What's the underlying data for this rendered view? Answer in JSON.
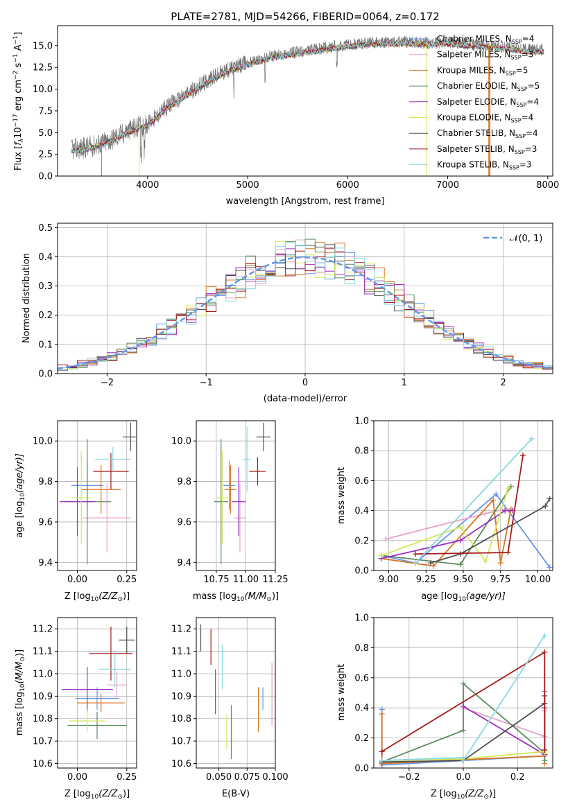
{
  "colors": [
    "#6495ed",
    "#e8a0c8",
    "#d9751f",
    "#5b8a5c",
    "#9b30c0",
    "#d4e85a",
    "#505050",
    "#a61919",
    "#88d8e0"
  ],
  "chart_data": [
    {
      "type": "line",
      "title": "PLATE=2781, MJD=54266, FIBERID=0064, z=0.172",
      "xlabel": "wavelength [Angstrom, rest frame]",
      "ylabel": "Flux [$f_\\lambda 10^{-17}$ erg cm$^{-2}$ s$^{-1}$ A$^{-1}$]",
      "ylabel_main": "Flux [",
      "ylabel_f": "f",
      "ylabel_fsub": "λ",
      "ylabel_mid1": "10",
      "ylabel_sup1": "−17",
      "ylabel_mid2": " erg cm",
      "ylabel_sup2": "−2",
      "ylabel_mid3": " s",
      "ylabel_sup3": "−1",
      "ylabel_mid4": " A",
      "ylabel_sup4": "−1",
      "ylabel_end": "]",
      "xlim": [
        3100,
        8050
      ],
      "ylim": [
        0,
        17.3
      ],
      "xticks": [
        "4000",
        "5000",
        "6000",
        "7000",
        "8000"
      ],
      "yticks": [
        "0.0",
        "2.5",
        "5.0",
        "7.5",
        "10.0",
        "12.5",
        "15.0"
      ],
      "legend": {
        "placement": "upper-right",
        "entries": [
          {
            "imf": "Chabrier MILES, N",
            "sub": "SSP",
            "val": "=4"
          },
          {
            "imf": "Salpeter MILES, N",
            "sub": "SSP",
            "val": "=3"
          },
          {
            "imf": "Kroupa MILES, N",
            "sub": "SSP",
            "val": "=5"
          },
          {
            "imf": "Chabrier ELODIE, N",
            "sub": "SSP",
            "val": "=5"
          },
          {
            "imf": "Salpeter ELODIE, N",
            "sub": "SSP",
            "val": "=4"
          },
          {
            "imf": "Kroupa ELODIE, N",
            "sub": "SSP",
            "val": "=4"
          },
          {
            "imf": "Chabrier STELIB, N",
            "sub": "SSP",
            "val": "=4"
          },
          {
            "imf": "Salpeter STELIB, N",
            "sub": "SSP",
            "val": "=3"
          },
          {
            "imf": "Kroupa STELIB, N",
            "sub": "SSP",
            "val": "=3"
          }
        ]
      },
      "series_continuum": {
        "x": [
          3200,
          3400,
          3600,
          3800,
          4000,
          4200,
          4400,
          4600,
          4800,
          5000,
          5200,
          5400,
          5600,
          5800,
          6000,
          6200,
          6400,
          6600,
          6800,
          7000,
          7200,
          7400,
          7600,
          7800
        ],
        "y": [
          3.0,
          3.3,
          4.0,
          5.2,
          6.0,
          8.0,
          9.5,
          11.0,
          12.2,
          13.0,
          13.7,
          14.1,
          14.4,
          14.8,
          15.1,
          15.3,
          15.4,
          15.4,
          15.3,
          15.4,
          15.2,
          15.0,
          14.8,
          14.5
        ]
      }
    },
    {
      "type": "line",
      "xlabel": "(data-model)/error",
      "ylabel": "Normed distribution",
      "xlim": [
        -2.5,
        2.5
      ],
      "ylim": [
        0,
        0.515
      ],
      "xticks": [
        "−2",
        "−1",
        "0",
        "1",
        "2"
      ],
      "yticks": [
        "0.0",
        "0.1",
        "0.2",
        "0.3",
        "0.4",
        "0.5"
      ],
      "grid": true,
      "legend": {
        "placement": "upper-right",
        "entries": [
          "𝒩(0, 1)"
        ]
      },
      "histogram": {
        "bin_width": 0.1,
        "peak": 0.49,
        "n_series": 9
      },
      "gaussian": {
        "mean": 0,
        "sigma": 1
      }
    },
    {
      "type": "scatter",
      "xlabel_pre": "Z [log",
      "xlabel_sub": "10",
      "xlabel_mid": "(Z/Z",
      "xlabel_sun": "⊙",
      "xlabel_end": ")]",
      "ylabel_pre": "age  [log",
      "ylabel_sub": "10",
      "ylabel_mid": "(age/yr)]",
      "xlim": [
        -0.1,
        0.3
      ],
      "ylim": [
        9.36,
        10.1
      ],
      "xticks": [
        "0.00",
        "0.25"
      ],
      "yticks": [
        "9.4",
        "9.6",
        "9.8",
        "10.0"
      ],
      "grid": true,
      "points": [
        {
          "x": 0.05,
          "y": 9.78,
          "xerr": 0.08,
          "yerr": 0.12
        },
        {
          "x": 0.15,
          "y": 9.62,
          "xerr": 0.12,
          "yerr": 0.17
        },
        {
          "x": 0.12,
          "y": 9.76,
          "xerr": 0.1,
          "yerr": 0.12
        },
        {
          "x": 0.05,
          "y": 9.7,
          "xerr": 0.12,
          "yerr": 0.31
        },
        {
          "x": 0.0,
          "y": 9.7,
          "xerr": 0.09,
          "yerr": 0.17
        },
        {
          "x": 0.02,
          "y": 9.72,
          "xerr": 0.05,
          "yerr": 0.23
        },
        {
          "x": 0.27,
          "y": 10.02,
          "xerr": 0.04,
          "yerr": 0.07
        },
        {
          "x": 0.17,
          "y": 9.85,
          "xerr": 0.09,
          "yerr": 0.09
        },
        {
          "x": 0.18,
          "y": 9.91,
          "xerr": 0.09,
          "yerr": 0.06
        }
      ]
    },
    {
      "type": "scatter",
      "xlabel_pre": "mass [log",
      "xlabel_sub": "10",
      "xlabel_mid": "(M/M",
      "xlabel_sun": "⊙",
      "xlabel_end": ")]",
      "xlim": [
        10.58,
        11.25
      ],
      "ylim": [
        9.36,
        10.1
      ],
      "xticks": [
        "10.75",
        "11.00",
        "11.25"
      ],
      "yticks": [
        "9.4",
        "9.6",
        "9.8",
        "10.0"
      ],
      "grid": true,
      "points": [
        {
          "x": 10.86,
          "y": 9.78,
          "xerr": 0.05,
          "yerr": 0.12
        },
        {
          "x": 10.95,
          "y": 9.62,
          "xerr": 0.05,
          "yerr": 0.17
        },
        {
          "x": 10.87,
          "y": 9.76,
          "xerr": 0.05,
          "yerr": 0.12
        },
        {
          "x": 10.79,
          "y": 9.7,
          "xerr": 0.06,
          "yerr": 0.31
        },
        {
          "x": 10.94,
          "y": 9.7,
          "xerr": 0.06,
          "yerr": 0.17
        },
        {
          "x": 10.8,
          "y": 9.72,
          "xerr": 0.05,
          "yerr": 0.23
        },
        {
          "x": 11.15,
          "y": 10.02,
          "xerr": 0.06,
          "yerr": 0.07
        },
        {
          "x": 11.1,
          "y": 9.85,
          "xerr": 0.07,
          "yerr": 0.07
        },
        {
          "x": 11.01,
          "y": 9.91,
          "xerr": 0.03,
          "yerr": 0.16
        }
      ]
    },
    {
      "type": "line",
      "xlabel_pre": "age  [log",
      "xlabel_sub": "10",
      "xlabel_mid": "(age/yr)]",
      "ylabel": "mass weight",
      "xlim": [
        8.9,
        10.1
      ],
      "ylim": [
        0,
        1.0
      ],
      "xticks": [
        "9.00",
        "9.25",
        "9.50",
        "9.75",
        "10.00"
      ],
      "yticks": [
        "0.0",
        "0.2",
        "0.4",
        "0.6",
        "0.8",
        "1.0"
      ],
      "grid": true,
      "series": [
        {
          "x": [
            8.95,
            9.18,
            9.72,
            10.08
          ],
          "y": [
            0.1,
            0.05,
            0.51,
            0.02
          ]
        },
        {
          "x": [
            8.98,
            9.65,
            9.78
          ],
          "y": [
            0.21,
            0.38,
            0.41
          ]
        },
        {
          "x": [
            8.95,
            9.3,
            9.7,
            9.75,
            9.82
          ],
          "y": [
            0.08,
            0.03,
            0.47,
            0.05,
            0.41
          ]
        },
        {
          "x": [
            8.95,
            9.48,
            9.82
          ],
          "y": [
            0.1,
            0.04,
            0.56
          ]
        },
        {
          "x": [
            8.95,
            9.48,
            9.78,
            9.83
          ],
          "y": [
            0.08,
            0.2,
            0.4,
            0.4
          ]
        },
        {
          "x": [
            8.95,
            9.48,
            9.65,
            9.8
          ],
          "y": [
            0.1,
            0.29,
            0.06,
            0.55
          ]
        },
        {
          "x": [
            9.28,
            9.48,
            10.05,
            10.08
          ],
          "y": [
            0.05,
            0.11,
            0.43,
            0.48
          ]
        },
        {
          "x": [
            9.18,
            9.8,
            9.9
          ],
          "y": [
            0.11,
            0.12,
            0.77
          ]
        },
        {
          "x": [
            9.18,
            9.96
          ],
          "y": [
            0.05,
            0.88
          ]
        }
      ]
    },
    {
      "type": "scatter",
      "xlabel_pre": "Z [log",
      "xlabel_sub": "10",
      "xlabel_mid": "(Z/Z",
      "xlabel_sun": "⊙",
      "xlabel_end": ")]",
      "ylabel_pre": "mass [log",
      "ylabel_sub": "10",
      "ylabel_mid": "(M/M",
      "ylabel_sun": "⊙",
      "ylabel_end": ")]",
      "xlim": [
        -0.1,
        0.3
      ],
      "ylim": [
        10.58,
        11.25
      ],
      "xticks": [
        "0.00",
        "0.25"
      ],
      "yticks": [
        "10.6",
        "10.7",
        "10.8",
        "10.9",
        "11.0",
        "11.1",
        "11.2"
      ],
      "grid": true,
      "points": [
        {
          "x": 0.1,
          "y": 10.89,
          "xerr": 0.11,
          "yerr": 0.05
        },
        {
          "x": 0.2,
          "y": 10.95,
          "xerr": 0.05,
          "yerr": 0.06
        },
        {
          "x": 0.12,
          "y": 10.87,
          "xerr": 0.12,
          "yerr": 0.04
        },
        {
          "x": 0.1,
          "y": 10.77,
          "xerr": 0.15,
          "yerr": 0.06
        },
        {
          "x": 0.05,
          "y": 10.93,
          "xerr": 0.13,
          "yerr": 0.1
        },
        {
          "x": 0.05,
          "y": 10.79,
          "xerr": 0.09,
          "yerr": 0.05
        },
        {
          "x": 0.25,
          "y": 11.15,
          "xerr": 0.04,
          "yerr": 0.06
        },
        {
          "x": 0.17,
          "y": 11.09,
          "xerr": 0.11,
          "yerr": 0.12
        },
        {
          "x": 0.19,
          "y": 11.02,
          "xerr": 0.08,
          "yerr": 0.08
        }
      ]
    },
    {
      "type": "scatter",
      "xlabel": "E(B-V)",
      "xlim": [
        0.03,
        0.1
      ],
      "ylim": [
        10.58,
        11.25
      ],
      "xticks": [
        "0.050",
        "0.075",
        "0.100"
      ],
      "yticks": [
        "10.6",
        "10.7",
        "10.8",
        "10.9",
        "11.0",
        "11.1",
        "11.2"
      ],
      "grid": true,
      "points": [
        {
          "x": 0.089,
          "y": 10.89,
          "yerr": 0.05
        },
        {
          "x": 0.097,
          "y": 10.91,
          "yerr": 0.14
        },
        {
          "x": 0.085,
          "y": 10.84,
          "yerr": 0.1
        },
        {
          "x": 0.061,
          "y": 10.74,
          "yerr": 0.12
        },
        {
          "x": 0.047,
          "y": 10.92,
          "yerr": 0.1
        },
        {
          "x": 0.057,
          "y": 10.74,
          "yerr": 0.08
        },
        {
          "x": 0.034,
          "y": 11.16,
          "yerr": 0.06
        },
        {
          "x": 0.043,
          "y": 11.12,
          "yerr": 0.08
        },
        {
          "x": 0.053,
          "y": 11.03,
          "yerr": 0.1
        }
      ]
    },
    {
      "type": "line",
      "xlabel_pre": "Z [log",
      "xlabel_sub": "10",
      "xlabel_mid": "(Z/Z",
      "xlabel_sun": "⊙",
      "xlabel_end": ")]",
      "ylabel": "mass weight",
      "xlim": [
        -0.33,
        0.33
      ],
      "ylim": [
        0,
        1.0
      ],
      "xticks": [
        "−0.2",
        "0.0",
        "0.2"
      ],
      "yticks": [
        "0.0",
        "0.2",
        "0.4",
        "0.6",
        "0.8",
        "1.0"
      ],
      "grid": true,
      "series": [
        {
          "x": [
            -0.3,
            -0.3,
            0.0,
            0.3,
            0.3
          ],
          "y": [
            0.39,
            0.02,
            0.05,
            0.08,
            0.51
          ]
        },
        {
          "x": [
            0.0,
            0.3,
            0.3
          ],
          "y": [
            0.4,
            0.21,
            0.38
          ]
        },
        {
          "x": [
            -0.3,
            -0.3,
            0.3,
            0.3
          ],
          "y": [
            0.36,
            0.03,
            0.08,
            0.03
          ]
        },
        {
          "x": [
            -0.3,
            0.0,
            0.0,
            0.3,
            0.3
          ],
          "y": [
            0.04,
            0.25,
            0.56,
            0.1,
            0.05
          ]
        },
        {
          "x": [
            0.0,
            0.3,
            0.3
          ],
          "y": [
            0.41,
            0.09,
            0.4
          ]
        },
        {
          "x": [
            -0.3,
            0.0,
            0.3,
            0.3
          ],
          "y": [
            0.05,
            0.06,
            0.11,
            0.1
          ]
        },
        {
          "x": [
            -0.3,
            0.0,
            0.3,
            0.3
          ],
          "y": [
            0.04,
            0.05,
            0.43,
            0.48
          ]
        },
        {
          "x": [
            -0.3,
            -0.3,
            0.3,
            0.3
          ],
          "y": [
            0.11,
            0.11,
            0.77,
            0.12
          ]
        },
        {
          "x": [
            -0.3,
            0.0,
            0.0,
            0.3
          ],
          "y": [
            0.05,
            0.07,
            0.05,
            0.88
          ]
        }
      ]
    }
  ]
}
